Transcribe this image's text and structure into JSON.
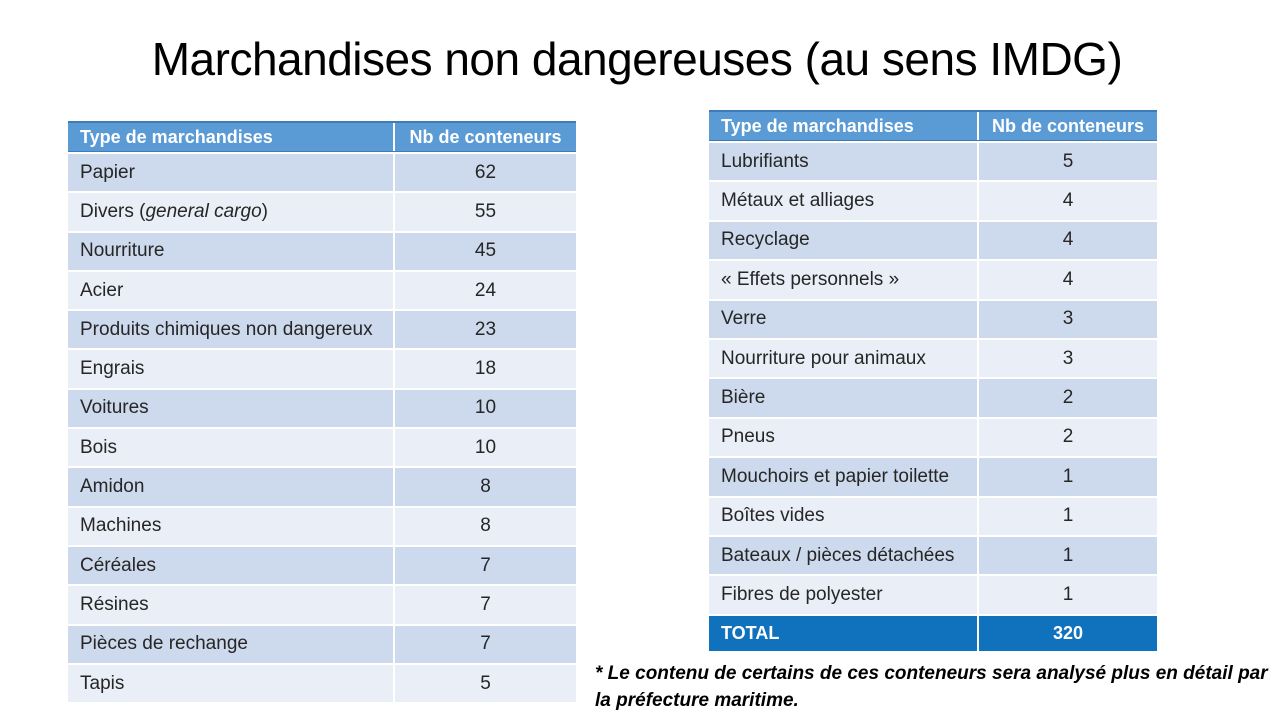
{
  "title": "Marchandises non dangereuses (au sens IMDG)",
  "footnote": "* Le contenu de certains de ces conteneurs sera analysé plus en détail par la préfecture maritime.",
  "colors": {
    "header_bg": "#5B9BD5",
    "header_border": "#3F7BB6",
    "header_text": "#FFFFFF",
    "row_dark": "#CDD9EC",
    "row_light": "#E9EEF7",
    "total_bg": "#1071BD",
    "body_text": "#262626",
    "title_text": "#000000"
  },
  "tables": [
    {
      "headers": [
        "Type de marchandises",
        "Nb de conteneurs"
      ],
      "rows": [
        {
          "type": "Papier",
          "count": "62"
        },
        {
          "type_prefix": "Divers (",
          "type_italic": "general cargo",
          "type_suffix": ")",
          "count": "55"
        },
        {
          "type": "Nourriture",
          "count": "45"
        },
        {
          "type": "Acier",
          "count": "24"
        },
        {
          "type": "Produits chimiques non dangereux",
          "count": "23"
        },
        {
          "type": "Engrais",
          "count": "18"
        },
        {
          "type": "Voitures",
          "count": "10"
        },
        {
          "type": "Bois",
          "count": "10"
        },
        {
          "type": "Amidon",
          "count": "8"
        },
        {
          "type": "Machines",
          "count": "8"
        },
        {
          "type": "Céréales",
          "count": "7"
        },
        {
          "type": "Résines",
          "count": "7"
        },
        {
          "type": "Pièces de rechange",
          "count": "7"
        },
        {
          "type": "Tapis",
          "count": "5"
        }
      ]
    },
    {
      "headers": [
        "Type de marchandises",
        "Nb de conteneurs"
      ],
      "rows": [
        {
          "type": "Lubrifiants",
          "count": "5"
        },
        {
          "type": "Métaux et alliages",
          "count": "4"
        },
        {
          "type": "Recyclage",
          "count": "4"
        },
        {
          "type": "« Effets personnels »",
          "count": "4"
        },
        {
          "type": "Verre",
          "count": "3"
        },
        {
          "type": "Nourriture pour animaux",
          "count": "3"
        },
        {
          "type": "Bière",
          "count": "2"
        },
        {
          "type": "Pneus",
          "count": "2"
        },
        {
          "type": "Mouchoirs et papier toilette",
          "count": "1"
        },
        {
          "type": "Boîtes vides",
          "count": "1"
        },
        {
          "type": "Bateaux / pièces détachées",
          "count": "1"
        },
        {
          "type": "Fibres de polyester",
          "count": "1"
        }
      ],
      "total": {
        "label": "TOTAL",
        "count": "320"
      }
    }
  ]
}
